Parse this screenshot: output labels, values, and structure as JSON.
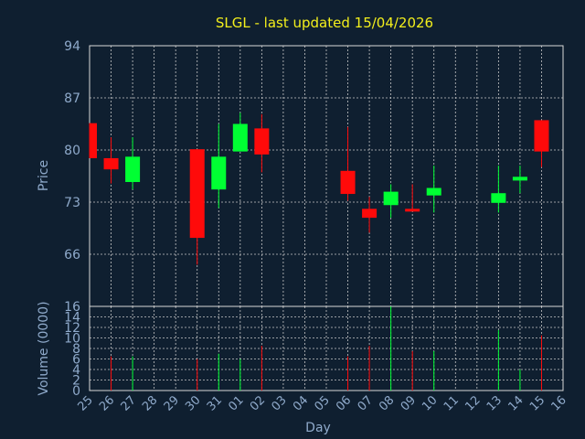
{
  "chart_data": [
    {
      "type": "candlestick",
      "title": "SLGL - last updated 15/04/2026",
      "ylabel": "Price",
      "ylim": [
        59,
        94
      ],
      "yticks": [
        94,
        87,
        80,
        73,
        66
      ],
      "grid": true,
      "colors": {
        "up": "#00ff33",
        "down": "#ff0a0a",
        "text": "#8faacb",
        "title": "#f2ee1c",
        "background": "#0f1f30"
      },
      "categories": [
        "25",
        "26",
        "27",
        "28",
        "29",
        "30",
        "31",
        "01",
        "02",
        "03",
        "04",
        "05",
        "06",
        "07",
        "08",
        "09",
        "10",
        "11",
        "12",
        "13",
        "14",
        "15",
        "16"
      ],
      "candles": [
        {
          "day": "25",
          "open": 83.6,
          "high": 83.6,
          "low": 78.9,
          "close": 78.9
        },
        {
          "day": "26",
          "open": 78.9,
          "high": 81.7,
          "low": 75.5,
          "close": 77.4
        },
        {
          "day": "27",
          "open": 75.7,
          "high": 81.7,
          "low": 74.7,
          "close": 79.1
        },
        {
          "day": "30",
          "open": 80.1,
          "high": 80.1,
          "low": 64.6,
          "close": 68.2
        },
        {
          "day": "31",
          "open": 74.7,
          "high": 83.5,
          "low": 72.2,
          "close": 79.1
        },
        {
          "day": "01",
          "open": 79.8,
          "high": 85.0,
          "low": 79.8,
          "close": 83.5
        },
        {
          "day": "02",
          "open": 82.9,
          "high": 84.8,
          "low": 77.0,
          "close": 79.4
        },
        {
          "day": "06",
          "open": 77.2,
          "high": 83.1,
          "low": 73.2,
          "close": 74.1
        },
        {
          "day": "07",
          "open": 72.1,
          "high": 73.7,
          "low": 68.9,
          "close": 70.9
        },
        {
          "day": "08",
          "open": 72.6,
          "high": 75.4,
          "low": 70.9,
          "close": 74.4
        },
        {
          "day": "09",
          "open": 72.1,
          "high": 75.4,
          "low": 71.9,
          "close": 71.8
        },
        {
          "day": "10",
          "open": 73.9,
          "high": 77.9,
          "low": 71.6,
          "close": 74.9
        },
        {
          "day": "13",
          "open": 72.9,
          "high": 77.9,
          "low": 71.6,
          "close": 74.2
        },
        {
          "day": "14",
          "open": 75.9,
          "high": 77.9,
          "low": 74.2,
          "close": 76.4
        },
        {
          "day": "15",
          "open": 84.0,
          "high": 84.0,
          "low": 77.7,
          "close": 79.8
        }
      ]
    },
    {
      "type": "bar",
      "xlabel": "Day",
      "ylabel": "Volume (0000)",
      "ylim": [
        0,
        16
      ],
      "yticks": [
        0,
        2,
        4,
        6,
        8,
        10,
        12,
        14,
        16
      ],
      "grid": true,
      "categories": [
        "25",
        "26",
        "27",
        "28",
        "29",
        "30",
        "31",
        "01",
        "02",
        "03",
        "04",
        "05",
        "06",
        "07",
        "08",
        "09",
        "10",
        "11",
        "12",
        "13",
        "14",
        "15",
        "16"
      ],
      "bars": [
        {
          "day": "25",
          "value": 0,
          "dir": "down"
        },
        {
          "day": "26",
          "value": 6.5,
          "dir": "down"
        },
        {
          "day": "27",
          "value": 6.5,
          "dir": "up"
        },
        {
          "day": "30",
          "value": 6.0,
          "dir": "down"
        },
        {
          "day": "31",
          "value": 7.0,
          "dir": "up"
        },
        {
          "day": "01",
          "value": 6.0,
          "dir": "up"
        },
        {
          "day": "02",
          "value": 8.5,
          "dir": "down"
        },
        {
          "day": "06",
          "value": 6.5,
          "dir": "down"
        },
        {
          "day": "07",
          "value": 8.5,
          "dir": "down"
        },
        {
          "day": "08",
          "value": 16,
          "dir": "up"
        },
        {
          "day": "09",
          "value": 7.5,
          "dir": "down"
        },
        {
          "day": "10",
          "value": 7.5,
          "dir": "up"
        },
        {
          "day": "13",
          "value": 11.5,
          "dir": "up"
        },
        {
          "day": "14",
          "value": 4.0,
          "dir": "up"
        },
        {
          "day": "15",
          "value": 10.5,
          "dir": "down"
        }
      ]
    }
  ]
}
